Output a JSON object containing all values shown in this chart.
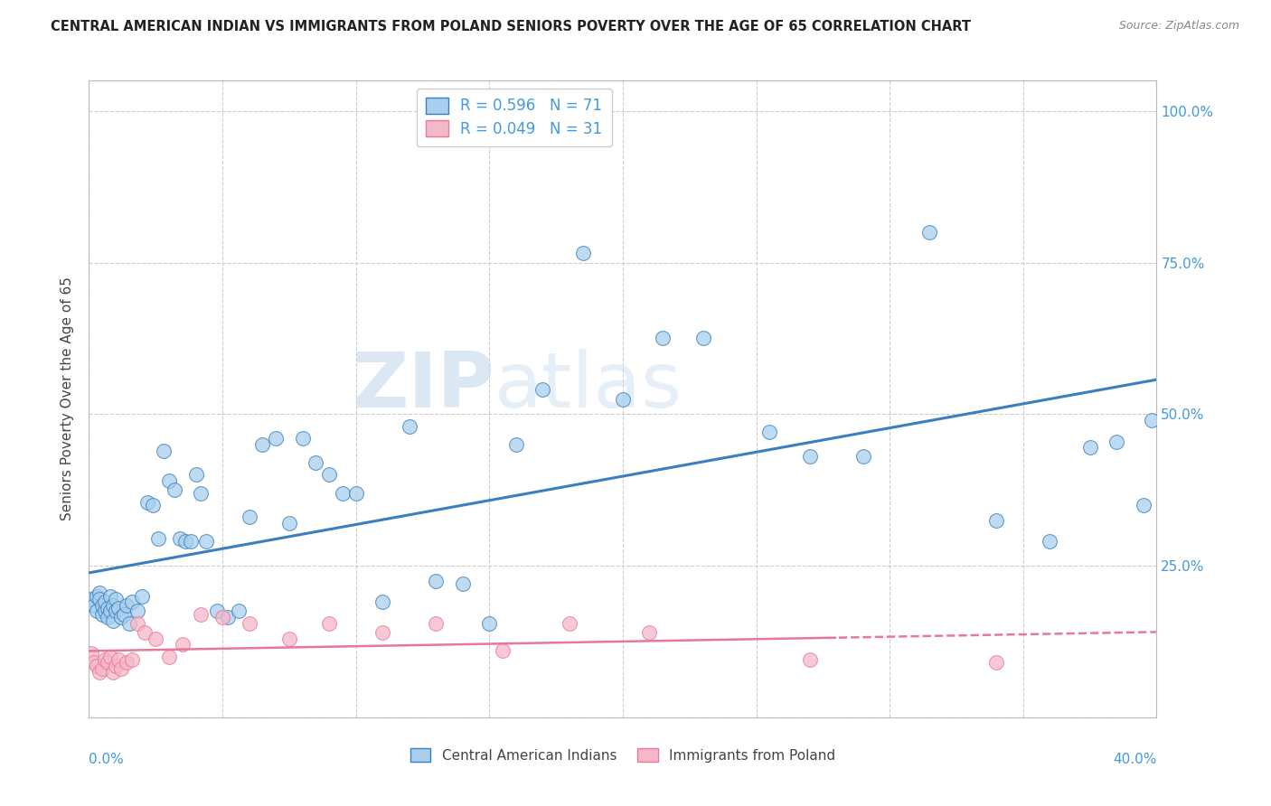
{
  "title": "CENTRAL AMERICAN INDIAN VS IMMIGRANTS FROM POLAND SENIORS POVERTY OVER THE AGE OF 65 CORRELATION CHART",
  "source": "Source: ZipAtlas.com",
  "ylabel": "Seniors Poverty Over the Age of 65",
  "xmin": 0.0,
  "xmax": 0.4,
  "ymin": 0.0,
  "ymax": 1.05,
  "yticks": [
    0.0,
    0.25,
    0.5,
    0.75,
    1.0
  ],
  "ytick_labels": [
    "",
    "25.0%",
    "50.0%",
    "75.0%",
    "100.0%"
  ],
  "series1_color": "#A8CFEE",
  "series2_color": "#F5B8C8",
  "line1_color": "#3A7FBF",
  "line2_color": "#E8789A",
  "R1": 0.596,
  "N1": 71,
  "R2": 0.049,
  "N2": 31,
  "legend_label1": "Central American Indians",
  "legend_label2": "Immigrants from Poland",
  "watermark_zip": "ZIP",
  "watermark_atlas": "atlas",
  "blue_x": [
    0.001,
    0.002,
    0.003,
    0.003,
    0.004,
    0.004,
    0.005,
    0.005,
    0.006,
    0.006,
    0.007,
    0.007,
    0.008,
    0.008,
    0.009,
    0.009,
    0.01,
    0.01,
    0.011,
    0.012,
    0.013,
    0.014,
    0.015,
    0.016,
    0.018,
    0.02,
    0.022,
    0.024,
    0.026,
    0.028,
    0.03,
    0.032,
    0.034,
    0.036,
    0.038,
    0.04,
    0.042,
    0.044,
    0.048,
    0.052,
    0.056,
    0.06,
    0.065,
    0.07,
    0.075,
    0.08,
    0.085,
    0.09,
    0.095,
    0.1,
    0.11,
    0.12,
    0.13,
    0.14,
    0.15,
    0.16,
    0.17,
    0.185,
    0.2,
    0.215,
    0.23,
    0.255,
    0.27,
    0.29,
    0.315,
    0.34,
    0.36,
    0.375,
    0.385,
    0.395,
    0.398
  ],
  "blue_y": [
    0.195,
    0.185,
    0.2,
    0.175,
    0.205,
    0.195,
    0.17,
    0.185,
    0.175,
    0.19,
    0.18,
    0.165,
    0.2,
    0.175,
    0.185,
    0.16,
    0.195,
    0.175,
    0.18,
    0.165,
    0.17,
    0.185,
    0.155,
    0.19,
    0.175,
    0.2,
    0.355,
    0.35,
    0.295,
    0.44,
    0.39,
    0.375,
    0.295,
    0.29,
    0.29,
    0.4,
    0.37,
    0.29,
    0.175,
    0.165,
    0.175,
    0.33,
    0.45,
    0.46,
    0.32,
    0.46,
    0.42,
    0.4,
    0.37,
    0.37,
    0.19,
    0.48,
    0.225,
    0.22,
    0.155,
    0.45,
    0.54,
    0.765,
    0.525,
    0.625,
    0.625,
    0.47,
    0.43,
    0.43,
    0.8,
    0.325,
    0.29,
    0.445,
    0.455,
    0.35,
    0.49
  ],
  "pink_x": [
    0.001,
    0.002,
    0.003,
    0.004,
    0.005,
    0.006,
    0.007,
    0.008,
    0.009,
    0.01,
    0.011,
    0.012,
    0.014,
    0.016,
    0.018,
    0.021,
    0.025,
    0.03,
    0.035,
    0.042,
    0.05,
    0.06,
    0.075,
    0.09,
    0.11,
    0.13,
    0.155,
    0.18,
    0.21,
    0.27,
    0.34
  ],
  "pink_y": [
    0.105,
    0.09,
    0.085,
    0.075,
    0.08,
    0.095,
    0.09,
    0.1,
    0.075,
    0.085,
    0.095,
    0.08,
    0.09,
    0.095,
    0.155,
    0.14,
    0.13,
    0.1,
    0.12,
    0.17,
    0.165,
    0.155,
    0.13,
    0.155,
    0.14,
    0.155,
    0.11,
    0.155,
    0.14,
    0.095,
    0.09
  ]
}
